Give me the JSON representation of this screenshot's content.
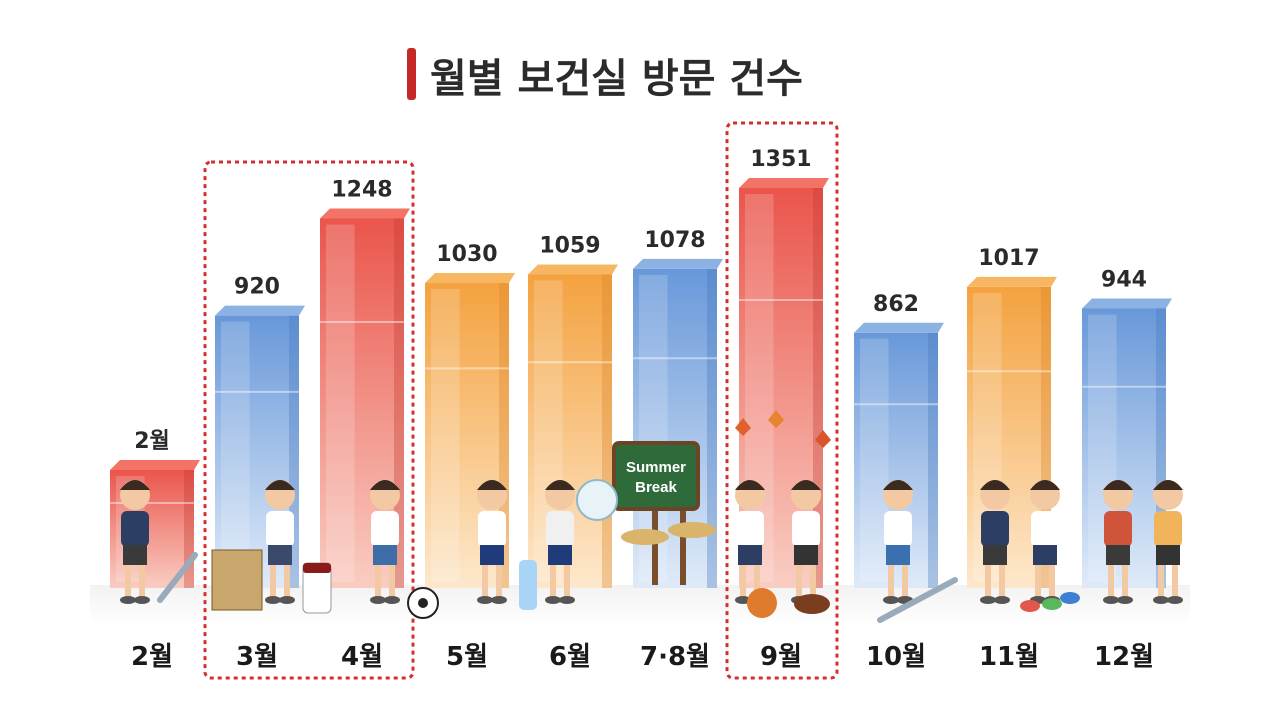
{
  "chart_data": {
    "type": "bar",
    "title": "월별 보건실 방문 건수",
    "categories": [
      "2월",
      "3월",
      "4월",
      "5월",
      "6월",
      "7·8월",
      "9월",
      "10월",
      "11월",
      "12월"
    ],
    "values": [
      null,
      920,
      1248,
      1030,
      1059,
      1078,
      1351,
      862,
      1017,
      944
    ],
    "value_labels": [
      "2월",
      "920",
      "1248",
      "1030",
      "1059",
      "1078",
      "1351",
      "862",
      "1017",
      "944"
    ],
    "bar_colors": [
      "red",
      "blue",
      "red",
      "orange",
      "orange",
      "blue",
      "red",
      "blue",
      "orange",
      "blue"
    ],
    "highlighted_groups": [
      [
        "3월",
        "4월"
      ],
      [
        "9월"
      ]
    ],
    "xlabel": "",
    "ylabel": "",
    "grid": false,
    "legend": "none"
  },
  "illustration": {
    "sign_line1": "Summer",
    "sign_line2": "Break"
  },
  "colors": {
    "title_accent": "#c62828",
    "highlight_border": "#d32f2f",
    "red_top": "#e8463c",
    "red_bottom": "#f7b7a8",
    "orange_top": "#f39a2e",
    "orange_bottom": "#fde2c0",
    "blue_top": "#5b8fd6",
    "blue_bottom": "#d7e6f7"
  }
}
